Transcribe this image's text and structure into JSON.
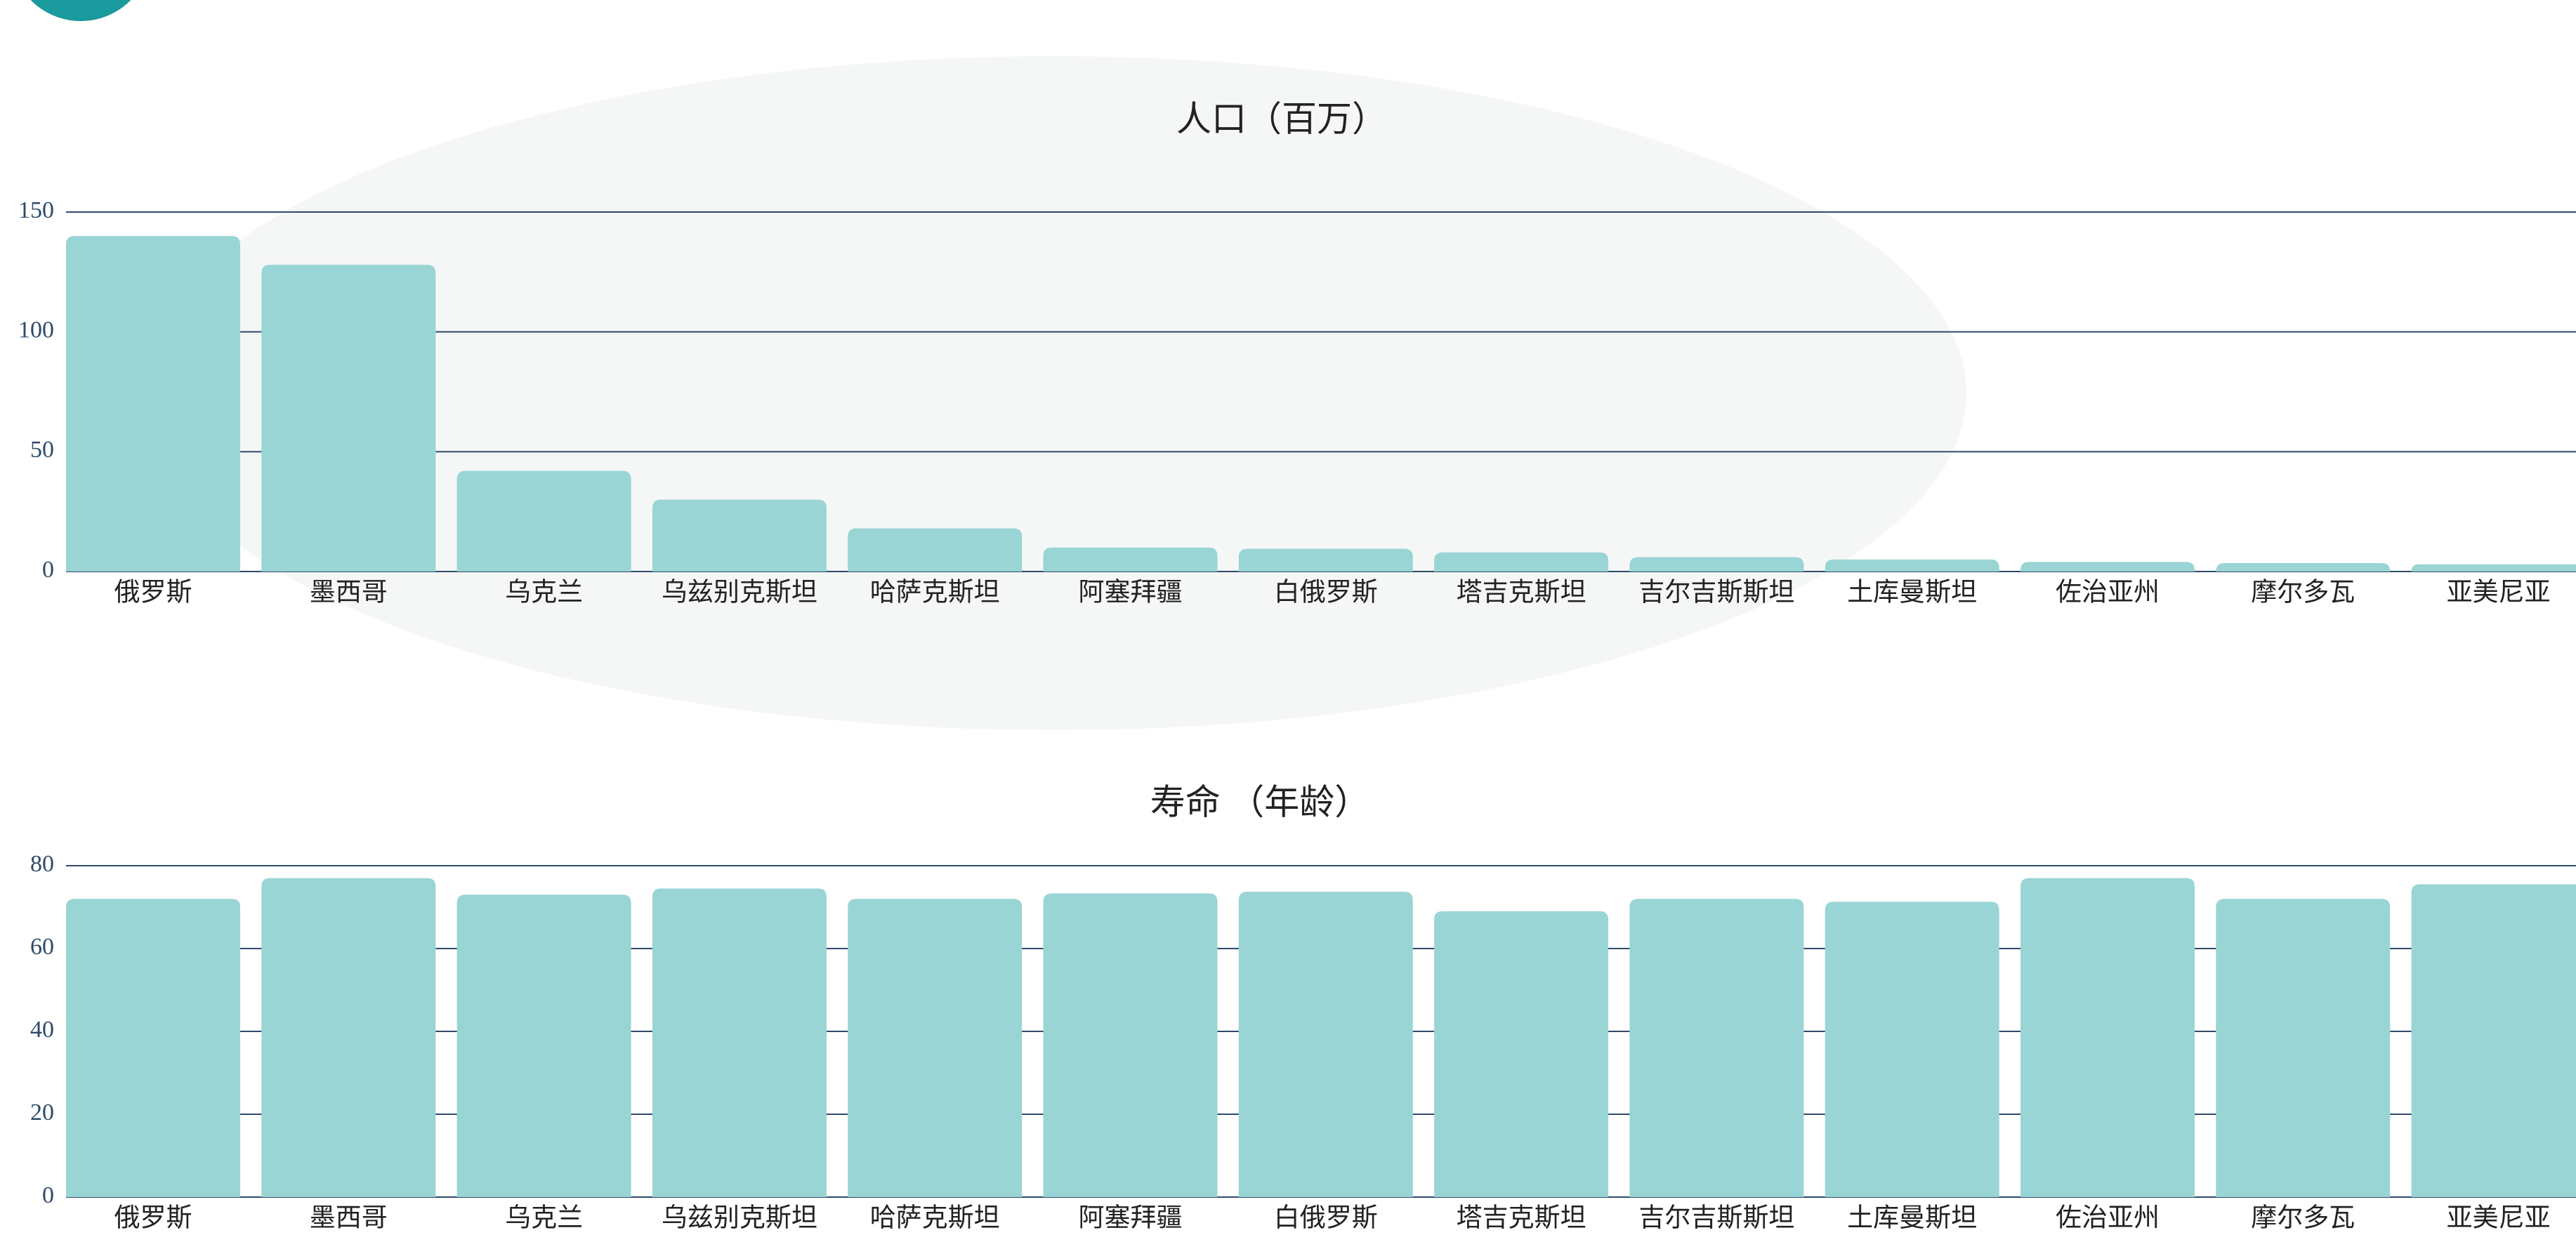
{
  "chart_data": [
    {
      "type": "bar",
      "title": "人口（百万）",
      "categories": [
        "俄罗斯",
        "墨西哥",
        "乌克兰",
        "乌兹别克斯坦",
        "哈萨克斯坦",
        "阿塞拜疆",
        "白俄罗斯",
        "塔吉克斯坦",
        "吉尔吉斯斯坦",
        "土库曼斯坦",
        "佐治亚州",
        "摩尔多瓦",
        "亚美尼亚"
      ],
      "values": [
        140,
        128,
        42,
        30,
        18,
        10,
        9.5,
        8,
        6,
        5,
        4,
        3.5,
        3
      ],
      "color": "#99d5d4",
      "ylim": [
        0,
        150
      ],
      "yticks": [
        0,
        50,
        100,
        150
      ],
      "grid": true
    },
    {
      "type": "bar",
      "title": "寿命 （年龄）",
      "categories": [
        "俄罗斯",
        "墨西哥",
        "乌克兰",
        "乌兹别克斯坦",
        "哈萨克斯坦",
        "阿塞拜疆",
        "白俄罗斯",
        "塔吉克斯坦",
        "吉尔吉斯斯坦",
        "土库曼斯坦",
        "佐治亚州",
        "摩尔多瓦",
        "亚美尼亚"
      ],
      "values": [
        72,
        77,
        73,
        74.5,
        72,
        73.3,
        73.7,
        69,
        72,
        71.3,
        77,
        72,
        75.5
      ],
      "color": "#99d5d4",
      "ylim": [
        0,
        80
      ],
      "yticks": [
        0,
        20,
        40,
        60,
        80
      ],
      "grid": true
    }
  ]
}
